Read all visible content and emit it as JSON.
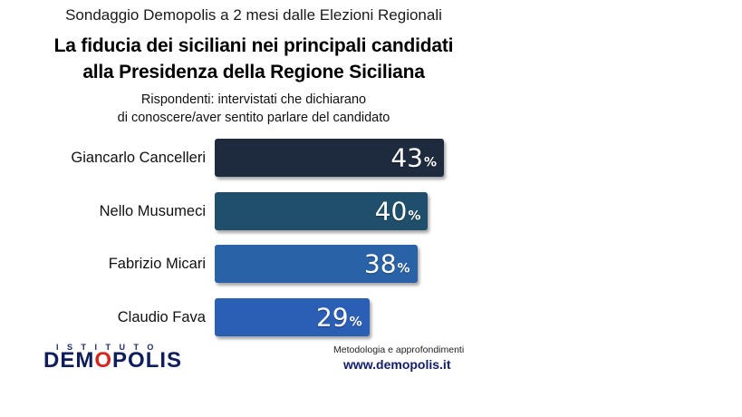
{
  "header": {
    "kicker": "Sondaggio Demopolis a 2 mesi dalle Elezioni Regionali",
    "title_line1": "La fiducia dei siciliani nei principali candidati",
    "title_line2": "alla Presidenza della Regione Siciliana",
    "subtitle_line1": "Rispondenti: intervistati che dichiarano",
    "subtitle_line2": "di conoscere/aver sentito parlare del candidato"
  },
  "chart_data": {
    "type": "bar",
    "orientation": "horizontal",
    "categories": [
      "Giancarlo Cancelleri",
      "Nello Musumeci",
      "Fabrizio Micari",
      "Claudio Fava"
    ],
    "values": [
      43,
      40,
      38,
      29
    ],
    "unit": "%",
    "bar_colors": [
      "#1e2a3e",
      "#1f4f6a",
      "#2a62a8",
      "#2b5fb6"
    ],
    "title": "La fiducia dei siciliani nei principali candidati alla Presidenza della Regione Siciliana",
    "grid": false,
    "legend": "none"
  },
  "branding": {
    "logo_top": "ISTITUTO",
    "logo_main_part1": "DEM",
    "logo_main_o": "O",
    "logo_main_part2": "POLIS",
    "note": "Metodologia e approfondimenti",
    "url": "www.demopolis.it"
  }
}
